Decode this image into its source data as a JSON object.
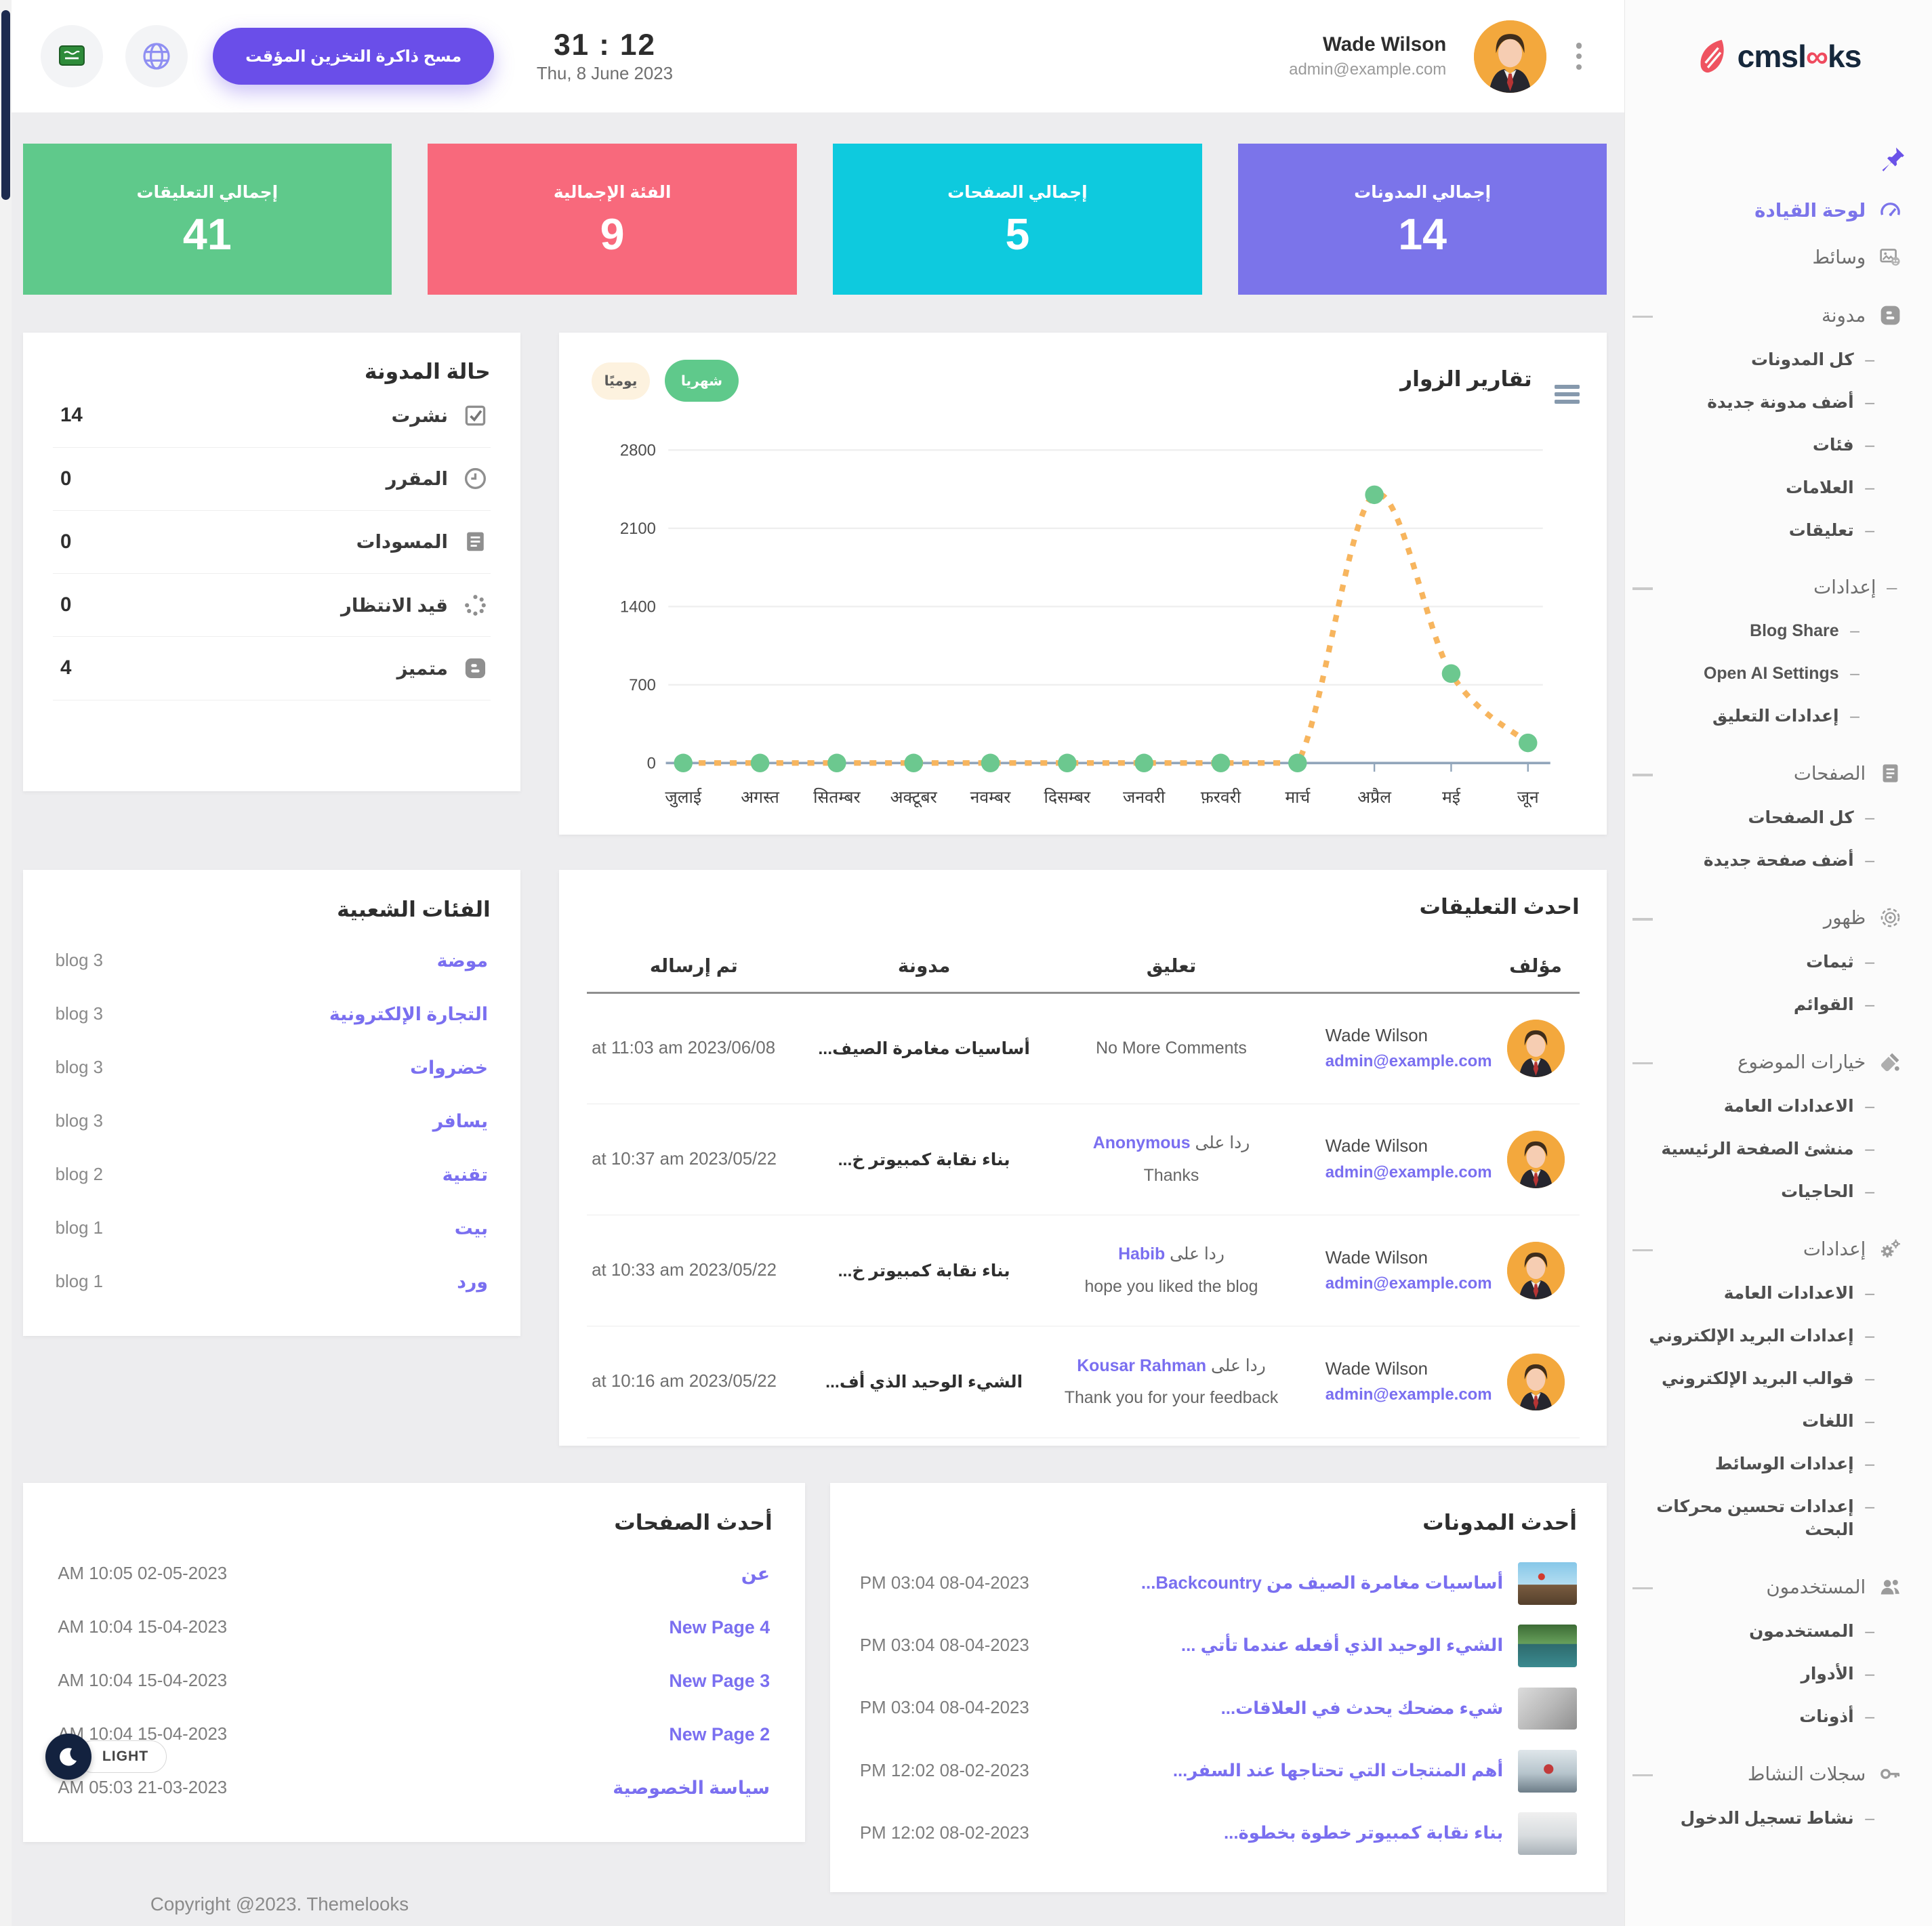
{
  "topbar": {
    "clear_cache_label": "مسح ذاكرة التخزين المؤقت",
    "time": "31 : 12",
    "date": "Thu, 8 June 2023",
    "user_name": "Wade Wilson",
    "user_email": "admin@example.com"
  },
  "logo": {
    "part1": "cmsl",
    "infinity": "∞",
    "part2": "ks"
  },
  "colors": {
    "purple": "#7b74ea",
    "cyan": "#0ecade",
    "red": "#f8697c",
    "green": "#5fc98b",
    "accent_button": "#6a4ee9",
    "link": "#7a6ff0",
    "chart_line": "#f7b55e",
    "chart_marker": "#6cc88f"
  },
  "stats": [
    {
      "label": "إجمالي المدونات",
      "value": "14",
      "color": "#7b74ea"
    },
    {
      "label": "إجمالي الصفحات",
      "value": "5",
      "color": "#0ecade"
    },
    {
      "label": "الفئة الإجمالية",
      "value": "9",
      "color": "#f8697c"
    },
    {
      "label": "إجمالي التعليقات",
      "value": "41",
      "color": "#5fc98b"
    }
  ],
  "blog_status": {
    "title": "حالة المدونة",
    "items": [
      {
        "label": "نشرت",
        "value": "14",
        "icon": "checkbox-icon"
      },
      {
        "label": "المقرر",
        "value": "0",
        "icon": "clock-icon"
      },
      {
        "label": "المسودات",
        "value": "0",
        "icon": "draft-icon"
      },
      {
        "label": "قيد الانتظار",
        "value": "0",
        "icon": "pending-spinner-icon"
      },
      {
        "label": "متميز",
        "value": "4",
        "icon": "featured-blog-icon"
      }
    ]
  },
  "visitors_chart": {
    "title": "تقارير الزوار",
    "daily_label": "يوميًا",
    "monthly_label": "شهريا"
  },
  "chart_data": {
    "type": "line",
    "title": "تقارير الزوار",
    "categories": [
      "जुलाई",
      "अगस्त",
      "सितम्बर",
      "अक्टूबर",
      "नवम्बर",
      "दिसम्बर",
      "जनवरी",
      "फ़रवरी",
      "मार्च",
      "अप्रैल",
      "मई",
      "जून"
    ],
    "series": [
      {
        "name": "visitors",
        "values": [
          0,
          0,
          0,
          0,
          0,
          0,
          0,
          0,
          0,
          2400,
          800,
          180
        ]
      }
    ],
    "xlabel": "",
    "ylabel": "",
    "ylim": [
      0,
      2800
    ],
    "yticks": [
      0,
      700,
      1400,
      2100,
      2800
    ],
    "grid": "horizontal",
    "legend": "none",
    "line_style": "dotted"
  },
  "popular_categories": {
    "title": "الفئات الشعبية",
    "items": [
      {
        "name": "موضة",
        "count": "blog 3"
      },
      {
        "name": "التجارة الإلكترونية",
        "count": "blog 3"
      },
      {
        "name": "خضروات",
        "count": "blog 3"
      },
      {
        "name": "يسافر",
        "count": "blog 3"
      },
      {
        "name": "تقنية",
        "count": "blog 2"
      },
      {
        "name": "بيت",
        "count": "blog 1"
      },
      {
        "name": "ورد",
        "count": "blog 1"
      }
    ]
  },
  "latest_comments": {
    "title": "احدث التعليقات",
    "columns": [
      "مؤلف",
      "تعليق",
      "مدونة",
      "تم إرساله"
    ],
    "reply_prefix": "ردا على",
    "rows": [
      {
        "author_name": "Wade Wilson",
        "author_email": "admin@example.com",
        "reply_to": "",
        "comment": "No More Comments",
        "blog": "أساسيات مغامرة الصيف...",
        "sent": "at 11:03 am 2023/06/08"
      },
      {
        "author_name": "Wade Wilson",
        "author_email": "admin@example.com",
        "reply_to": "Anonymous",
        "comment": "Thanks",
        "blog": "بناء نقابة كمبيوتر خ...",
        "sent": "at 10:37 am 2023/05/22"
      },
      {
        "author_name": "Wade Wilson",
        "author_email": "admin@example.com",
        "reply_to": "Habib",
        "comment": "hope you liked the blog",
        "blog": "بناء نقابة كمبيوتر خ...",
        "sent": "at 10:33 am 2023/05/22"
      },
      {
        "author_name": "Wade Wilson",
        "author_email": "admin@example.com",
        "reply_to": "Kousar Rahman",
        "comment": "Thank you for your feedback",
        "blog": "الشيء الوحيد الذي أف...",
        "sent": "at 10:16 am 2023/05/22"
      }
    ]
  },
  "latest_pages": {
    "title": "أحدث الصفحات",
    "items": [
      {
        "title": "عن",
        "date": "AM 10:05 02-05-2023"
      },
      {
        "title": "New Page 4",
        "date": "AM 10:04 15-04-2023"
      },
      {
        "title": "New Page 3",
        "date": "AM 10:04 15-04-2023"
      },
      {
        "title": "New Page 2",
        "date": "AM 10:04 15-04-2023"
      },
      {
        "title": "سياسة الخصوصية",
        "date": "AM 05:03 21-03-2023"
      }
    ]
  },
  "latest_blogs": {
    "title": "أحدث المدونات",
    "items": [
      {
        "title": "أساسيات مغامرة الصيف من Backcountry...",
        "date": "PM 03:04 08-04-2023",
        "thumb": "mountain"
      },
      {
        "title": "الشيء الوحيد الذي أفعله عندما تأتي ...",
        "date": "PM 03:04 08-04-2023",
        "thumb": "lake"
      },
      {
        "title": "شيء مضحك يحدث في العلاقات...",
        "date": "PM 03:04 08-04-2023",
        "thumb": "rocks"
      },
      {
        "title": "أهم المنتجات التي تحتاجها عند السفر...",
        "date": "PM 12:02 08-02-2023",
        "thumb": "cycling"
      },
      {
        "title": "بناء نقابة كمبيوتر خطوة بخطوة...",
        "date": "PM 12:02 08-02-2023",
        "thumb": "computer"
      }
    ]
  },
  "sidebar": {
    "items": [
      {
        "label": "لوحة القيادة",
        "icon": "dashboard-icon",
        "active": true
      },
      {
        "label": "وسائط",
        "icon": "media-icon"
      },
      {
        "label": "مدونة",
        "icon": "blog-icon",
        "expandable": true,
        "children": [
          {
            "label": "كل المدونات"
          },
          {
            "label": "أضف مدونة جديدة"
          },
          {
            "label": "فئات"
          },
          {
            "label": "العلامات"
          },
          {
            "label": "تعليقات"
          },
          {
            "label": "إعدادات",
            "expandable": true,
            "children": [
              {
                "label": "Blog Share",
                "ltr": true
              },
              {
                "label": "Open AI Settings",
                "ltr": true
              },
              {
                "label": "إعدادات التعليق"
              }
            ]
          }
        ]
      },
      {
        "label": "الصفحات",
        "icon": "pages-icon",
        "expandable": true,
        "children": [
          {
            "label": "كل الصفحات"
          },
          {
            "label": "أضف صفحة جديدة"
          }
        ]
      },
      {
        "label": "ظهور",
        "icon": "appearance-icon",
        "expandable": true,
        "children": [
          {
            "label": "ثيمات"
          },
          {
            "label": "القوائم"
          }
        ]
      },
      {
        "label": "خيارات الموضوع",
        "icon": "theme-options-icon",
        "expandable": true,
        "children": [
          {
            "label": "الاعدادات العامة"
          },
          {
            "label": "منشئ الصفحة الرئيسية"
          },
          {
            "label": "الحاجيات"
          }
        ]
      },
      {
        "label": "إعدادات",
        "icon": "settings-icon",
        "expandable": true,
        "children": [
          {
            "label": "الاعدادات العامة"
          },
          {
            "label": "إعدادات البريد الإلكتروني"
          },
          {
            "label": "قوالب البريد الإلكتروني"
          },
          {
            "label": "اللغات"
          },
          {
            "label": "إعدادات الوسائط"
          },
          {
            "label": "إعدادات تحسين محركات البحث"
          }
        ]
      },
      {
        "label": "المستخدمون",
        "icon": "users-icon",
        "expandable": true,
        "children": [
          {
            "label": "المستخدمون"
          },
          {
            "label": "الأدوار"
          },
          {
            "label": "أذونات"
          }
        ]
      },
      {
        "label": "سجلات النشاط",
        "icon": "activity-logs-icon",
        "expandable": true,
        "children": [
          {
            "label": "نشاط تسجيل الدخول"
          }
        ]
      }
    ]
  },
  "theme_toggle": {
    "label": "LIGHT"
  },
  "footer": {
    "copyright": "Copyright @2023. Themelooks"
  }
}
